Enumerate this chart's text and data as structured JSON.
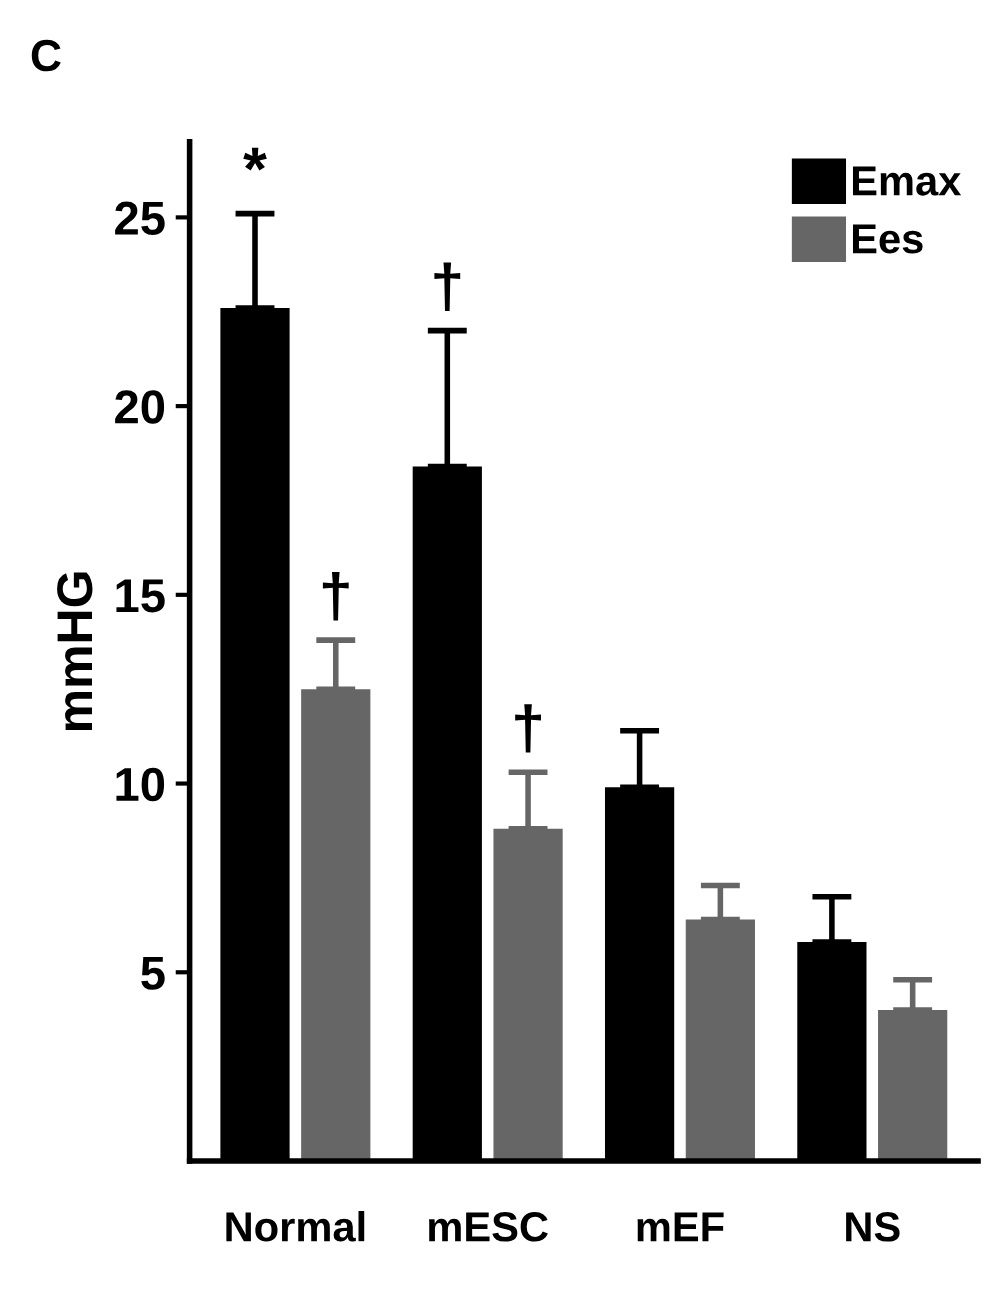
{
  "chart_data": {
    "type": "bar",
    "ylabel": "mmHG",
    "categories": [
      "Normal",
      "mESC",
      "mEF",
      "NS"
    ],
    "series": [
      {
        "name": "Emax",
        "color": "#000000",
        "values": [
          22.6,
          18.4,
          9.9,
          5.8
        ],
        "errors": [
          [
            22.6,
            25.1
          ],
          [
            18.4,
            22.0
          ],
          [
            9.9,
            11.4
          ],
          [
            5.8,
            7.0
          ]
        ]
      },
      {
        "name": "Ees",
        "color": "#666666",
        "values": [
          12.5,
          8.8,
          6.4,
          4.0
        ],
        "errors": [
          [
            12.5,
            13.8
          ],
          [
            8.8,
            10.3
          ],
          [
            6.4,
            7.3
          ],
          [
            4.0,
            4.8
          ]
        ]
      }
    ],
    "annotations": [
      "C",
      {
        "text": "*",
        "x": "Normal",
        "y": 22.6
      },
      {
        "text": "†",
        "x": "Normal",
        "y": 12.5
      },
      {
        "text": "†",
        "x": "mESC",
        "y": 18.4
      },
      {
        "text": "†",
        "x": "mESC",
        "y": 8.8
      }
    ],
    "ylim": [
      0,
      27
    ],
    "yticks": [
      5,
      10,
      15,
      20,
      25
    ],
    "legend": "top right",
    "grid": false
  }
}
